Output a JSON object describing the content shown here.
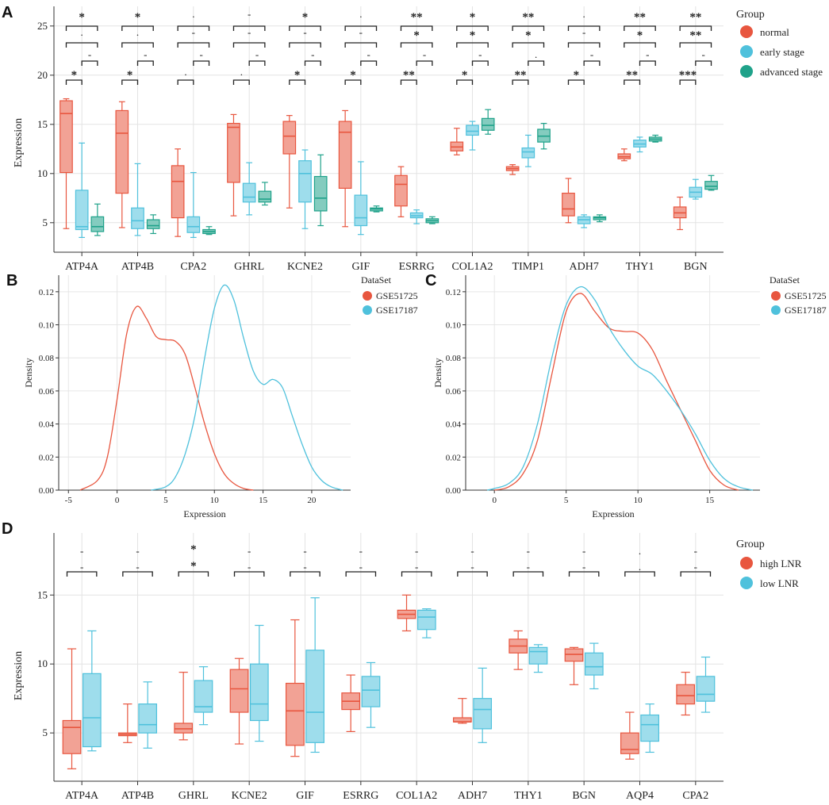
{
  "colors": {
    "normal": "#e8563f",
    "early": "#4fc1dc",
    "advanced": "#1fa28a",
    "gse51725": "#e8563f",
    "gse17187": "#4fc1dc",
    "high": "#e8563f",
    "low": "#4fc1dc"
  },
  "chart_data": [
    {
      "id": "A",
      "type": "box",
      "panel_label": "A",
      "ylabel": "Expression",
      "ylim": [
        2,
        27
      ],
      "yticks": [
        5,
        10,
        15,
        20,
        25
      ],
      "legend_title": "Group",
      "groups": [
        "normal",
        "early stage",
        "advanced stage"
      ],
      "categories": [
        "ATP4A",
        "ATP4B",
        "CPA2",
        "GHRL",
        "KCNE2",
        "GIF",
        "ESRRG",
        "COL1A2",
        "TIMP1",
        "ADH7",
        "THY1",
        "BGN"
      ],
      "boxes": [
        [
          [
            4.4,
            10.1,
            16.1,
            17.4,
            17.6
          ],
          [
            3.5,
            4.3,
            4.6,
            8.3,
            13.1
          ],
          [
            3.7,
            4.1,
            4.6,
            5.6,
            6.9
          ]
        ],
        [
          [
            4.5,
            8.0,
            14.1,
            16.4,
            17.3
          ],
          [
            3.7,
            4.4,
            5.2,
            6.5,
            11.0
          ],
          [
            3.9,
            4.4,
            4.7,
            5.3,
            5.8
          ]
        ],
        [
          [
            3.6,
            5.5,
            9.2,
            10.8,
            12.5
          ],
          [
            3.5,
            4.0,
            4.6,
            5.6,
            10.1
          ],
          [
            3.8,
            3.9,
            4.1,
            4.3,
            4.6
          ]
        ],
        [
          [
            5.7,
            9.1,
            14.7,
            15.1,
            16.0
          ],
          [
            5.8,
            7.1,
            7.6,
            9.0,
            11.1
          ],
          [
            6.8,
            7.1,
            7.4,
            8.2,
            9.1
          ]
        ],
        [
          [
            6.5,
            12.0,
            13.8,
            15.3,
            15.9
          ],
          [
            4.4,
            7.1,
            10.0,
            11.3,
            12.4
          ],
          [
            4.7,
            6.2,
            7.5,
            9.7,
            11.9
          ]
        ],
        [
          [
            4.6,
            8.5,
            14.2,
            15.3,
            16.4
          ],
          [
            3.8,
            4.7,
            5.5,
            7.8,
            11.2
          ],
          [
            6.1,
            6.2,
            6.4,
            6.5,
            6.7
          ]
        ],
        [
          [
            5.6,
            6.7,
            8.9,
            9.8,
            10.7
          ],
          [
            4.9,
            5.5,
            5.7,
            6.0,
            6.3
          ],
          [
            4.9,
            5.0,
            5.2,
            5.4,
            5.6
          ]
        ],
        [
          [
            11.9,
            12.3,
            12.7,
            13.2,
            14.6
          ],
          [
            12.4,
            13.9,
            14.3,
            14.9,
            15.3
          ],
          [
            14.0,
            14.4,
            14.9,
            15.6,
            16.5
          ]
        ],
        [
          [
            9.9,
            10.3,
            10.5,
            10.7,
            10.9
          ],
          [
            10.7,
            11.6,
            12.2,
            12.6,
            13.9
          ],
          [
            12.5,
            13.2,
            13.8,
            14.5,
            15.1
          ]
        ],
        [
          [
            5.0,
            5.7,
            6.4,
            8.0,
            9.5
          ],
          [
            4.5,
            4.9,
            5.3,
            5.6,
            5.8
          ],
          [
            5.1,
            5.3,
            5.5,
            5.6,
            5.8
          ]
        ],
        [
          [
            11.3,
            11.5,
            11.7,
            12.0,
            12.5
          ],
          [
            12.2,
            12.7,
            13.0,
            13.4,
            13.7
          ],
          [
            13.2,
            13.3,
            13.5,
            13.7,
            13.9
          ]
        ],
        [
          [
            4.3,
            5.5,
            6.0,
            6.6,
            7.6
          ],
          [
            7.4,
            7.6,
            8.1,
            8.6,
            9.4
          ],
          [
            8.3,
            8.4,
            8.7,
            9.2,
            9.8
          ]
        ]
      ],
      "annotations": [
        {
          "top": "*",
          "mid": ".",
          "b12": "*",
          "b23": "-"
        },
        {
          "top": "*",
          "mid": ".",
          "b12": "*",
          "b23": "-"
        },
        {
          "top": ".",
          "mid": "-",
          "b12": ".",
          "b23": "-"
        },
        {
          "top": "-",
          "mid": "-",
          "b12": ".",
          "b23": "-"
        },
        {
          "top": "*",
          "mid": "-",
          "b12": "*",
          "b23": "-"
        },
        {
          "top": ".",
          "mid": "-",
          "b12": "*",
          "b23": "-"
        },
        {
          "top": "**",
          "mid": "*",
          "b12": "**",
          "b23": "-"
        },
        {
          "top": "*",
          "mid": "*",
          "b12": "*",
          "b23": "-"
        },
        {
          "top": "**",
          "mid": "*",
          "b12": "**",
          "b23": "."
        },
        {
          "top": ".",
          "mid": "-",
          "b12": "*",
          "b23": "-"
        },
        {
          "top": "**",
          "mid": "*",
          "b12": "**",
          "b23": "-"
        },
        {
          "top": "**",
          "mid": "**",
          "b12": "***",
          "b23": "-"
        }
      ]
    },
    {
      "id": "B",
      "type": "density",
      "panel_label": "B",
      "xlabel": "Expression",
      "ylabel": "Density",
      "xlim": [
        -6,
        24
      ],
      "xticks": [
        -5,
        0,
        5,
        10,
        15,
        20
      ],
      "ylim": [
        0,
        0.13
      ],
      "yticks": [
        0.0,
        0.02,
        0.04,
        0.06,
        0.08,
        0.1,
        0.12
      ],
      "legend_title": "DataSet",
      "series": [
        {
          "name": "GSE51725",
          "x": [
            -3.8,
            -2,
            -1,
            0,
            1,
            2,
            3,
            4,
            5,
            6,
            7,
            8,
            9,
            10,
            11,
            12,
            13,
            14
          ],
          "y": [
            0,
            0.006,
            0.02,
            0.055,
            0.095,
            0.111,
            0.104,
            0.093,
            0.091,
            0.09,
            0.082,
            0.062,
            0.04,
            0.022,
            0.01,
            0.004,
            0.001,
            0
          ]
        },
        {
          "name": "GSE17187",
          "x": [
            3.5,
            5,
            6,
            7,
            8,
            9,
            10,
            11,
            12,
            13,
            14,
            15,
            16,
            17,
            18,
            19,
            20,
            21,
            22,
            23.2
          ],
          "y": [
            0,
            0.002,
            0.008,
            0.022,
            0.045,
            0.08,
            0.11,
            0.124,
            0.115,
            0.092,
            0.072,
            0.064,
            0.067,
            0.062,
            0.045,
            0.028,
            0.014,
            0.006,
            0.002,
            0
          ]
        }
      ]
    },
    {
      "id": "C",
      "type": "density",
      "panel_label": "C",
      "xlabel": "Expression",
      "ylabel": "Density",
      "xlim": [
        -2,
        18.5
      ],
      "xticks": [
        0,
        5,
        10,
        15
      ],
      "ylim": [
        0,
        0.13
      ],
      "yticks": [
        0.0,
        0.02,
        0.04,
        0.06,
        0.08,
        0.1,
        0.12
      ],
      "legend_title": "DataSet",
      "series": [
        {
          "name": "GSE51725",
          "x": [
            0,
            1,
            2,
            3,
            4,
            5,
            6,
            7,
            8,
            9,
            10,
            11,
            12,
            13,
            14,
            15,
            16,
            17
          ],
          "y": [
            0,
            0.002,
            0.01,
            0.03,
            0.07,
            0.108,
            0.119,
            0.108,
            0.098,
            0.096,
            0.095,
            0.085,
            0.066,
            0.048,
            0.03,
            0.012,
            0.003,
            0
          ]
        },
        {
          "name": "GSE17187",
          "x": [
            -0.5,
            0,
            1,
            2,
            3,
            4,
            5,
            6,
            7,
            8,
            9,
            10,
            11,
            12,
            13,
            14,
            15,
            16,
            17,
            18
          ],
          "y": [
            0,
            0.001,
            0.004,
            0.014,
            0.04,
            0.08,
            0.112,
            0.123,
            0.115,
            0.098,
            0.085,
            0.075,
            0.07,
            0.06,
            0.048,
            0.034,
            0.018,
            0.007,
            0.002,
            0
          ]
        }
      ]
    },
    {
      "id": "D",
      "type": "box",
      "panel_label": "D",
      "ylabel": "Expression",
      "ylim": [
        1.5,
        19.5
      ],
      "yticks": [
        5,
        10,
        15
      ],
      "legend_title": "Group",
      "groups": [
        "high LNR",
        "low LNR"
      ],
      "categories": [
        "ATP4A",
        "ATP4B",
        "GHRL",
        "KCNE2",
        "GIF",
        "ESRRG",
        "COL1A2",
        "ADH7",
        "THY1",
        "BGN",
        "AQP4",
        "CPA2"
      ],
      "boxes": [
        [
          [
            2.4,
            3.5,
            5.4,
            5.9,
            11.1
          ],
          [
            3.7,
            4.0,
            6.1,
            9.3,
            12.4
          ]
        ],
        [
          [
            4.3,
            4.8,
            4.9,
            5.0,
            7.1
          ],
          [
            3.9,
            5.0,
            5.6,
            7.1,
            8.7
          ]
        ],
        [
          [
            4.5,
            5.0,
            5.3,
            5.7,
            9.4
          ],
          [
            5.6,
            6.5,
            6.9,
            8.8,
            9.8
          ]
        ],
        [
          [
            4.2,
            6.5,
            8.2,
            9.6,
            10.4
          ],
          [
            4.4,
            5.9,
            7.1,
            10.0,
            12.8
          ]
        ],
        [
          [
            3.3,
            4.1,
            6.6,
            8.6,
            13.2
          ],
          [
            3.6,
            4.3,
            6.5,
            11.0,
            14.8
          ]
        ],
        [
          [
            5.1,
            6.7,
            7.3,
            7.9,
            9.2
          ],
          [
            5.4,
            6.9,
            8.1,
            9.1,
            10.1
          ]
        ],
        [
          [
            12.4,
            13.3,
            13.6,
            13.9,
            15.0
          ],
          [
            11.9,
            12.5,
            13.4,
            13.9,
            14.0
          ]
        ],
        [
          [
            5.7,
            5.8,
            5.8,
            6.1,
            7.5
          ],
          [
            4.3,
            5.3,
            6.7,
            7.5,
            9.7
          ]
        ],
        [
          [
            9.6,
            10.8,
            11.3,
            11.8,
            12.4
          ],
          [
            9.4,
            10.0,
            10.9,
            11.2,
            11.4
          ]
        ],
        [
          [
            8.5,
            10.2,
            10.7,
            11.1,
            11.2
          ],
          [
            8.2,
            9.2,
            9.8,
            10.8,
            11.5
          ]
        ],
        [
          [
            3.1,
            3.5,
            3.8,
            5.0,
            6.5
          ],
          [
            3.6,
            4.4,
            5.6,
            6.3,
            7.1
          ]
        ],
        [
          [
            6.3,
            7.1,
            7.7,
            8.5,
            9.4
          ],
          [
            6.5,
            7.3,
            7.8,
            9.1,
            10.5
          ]
        ]
      ],
      "annotations": [
        {
          "top": "-",
          "bot": "-"
        },
        {
          "top": "-",
          "bot": "-"
        },
        {
          "top": "*",
          "bot": "*"
        },
        {
          "top": "-",
          "bot": "-"
        },
        {
          "top": "-",
          "bot": "-"
        },
        {
          "top": "-",
          "bot": "-"
        },
        {
          "top": "-",
          "bot": "-"
        },
        {
          "top": "-",
          "bot": "-"
        },
        {
          "top": "-",
          "bot": "-"
        },
        {
          "top": "-",
          "bot": "-"
        },
        {
          "top": ".",
          "bot": "."
        },
        {
          "top": "-",
          "bot": "-"
        }
      ]
    }
  ]
}
